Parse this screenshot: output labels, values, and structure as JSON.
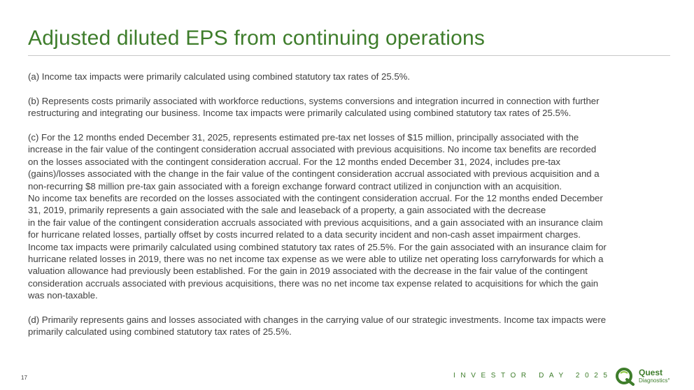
{
  "title": "Adjusted diluted EPS from continuing operations",
  "notes": [
    {
      "lines": [
        "(a) Income tax impacts were primarily calculated using combined statutory tax rates of 25.5%."
      ]
    },
    {
      "lines": [
        "(b) Represents costs primarily associated with workforce reductions, systems conversions and integration incurred in connection with further",
        "restructuring and integrating our business.  Income tax impacts were primarily calculated using combined statutory tax rates of 25.5%."
      ]
    },
    {
      "lines": [
        "(c)  For the 12 months ended December 31, 2025, represents estimated pre-tax net losses of $15 million, principally associated with the",
        "increase in the fair value of the contingent consideration accrual associated with previous acquisitions. No income tax benefits are recorded",
        "on the losses associated with the contingent consideration accrual. For the 12 months ended December 31, 2024, includes pre-tax",
        "(gains)/losses associated with the change in the fair value of the contingent consideration accrual associated with previous acquisition and a",
        "non-recurring $8 million pre-tax gain associated with a foreign exchange forward contract utilized in conjunction with an acquisition.",
        "No income tax benefits are recorded on the losses associated with the contingent consideration accrual. For the 12 months ended December",
        "31, 2019, primarily represents a gain associated with the sale and leaseback of a property, a gain associated with the decrease",
        "in the fair value of the contingent consideration accruals associated with previous acquisitions, and a gain associated with an insurance claim",
        "for hurricane related losses, partially offset by costs incurred related to a data security incident and non-cash asset impairment charges.",
        "Income tax impacts were primarily calculated using combined statutory tax rates of 25.5%. For the gain associated with an insurance claim for",
        "hurricane related losses in 2019, there was no net income tax expense as we were able to utilize net operating loss carryforwards for which a",
        "valuation allowance had previously been established. For the gain in 2019 associated with the decrease in the fair value of the contingent",
        "consideration accruals associated with previous acquisitions, there was no net income tax expense related to acquisitions for which the gain",
        "was non-taxable."
      ]
    },
    {
      "lines": [
        "(d) Primarily represents gains and losses associated with changes in the carrying value of our strategic investments. Income tax impacts were",
        "primarily calculated using combined statutory tax rates of 25.5%."
      ]
    }
  ],
  "footer": {
    "page_number": "17",
    "event": "INVESTOR DAY 2025",
    "logo_name": "Quest",
    "logo_sub": "Diagnostics°"
  },
  "colors": {
    "brand_green": "#3e7d2b",
    "body_text": "#404040"
  }
}
